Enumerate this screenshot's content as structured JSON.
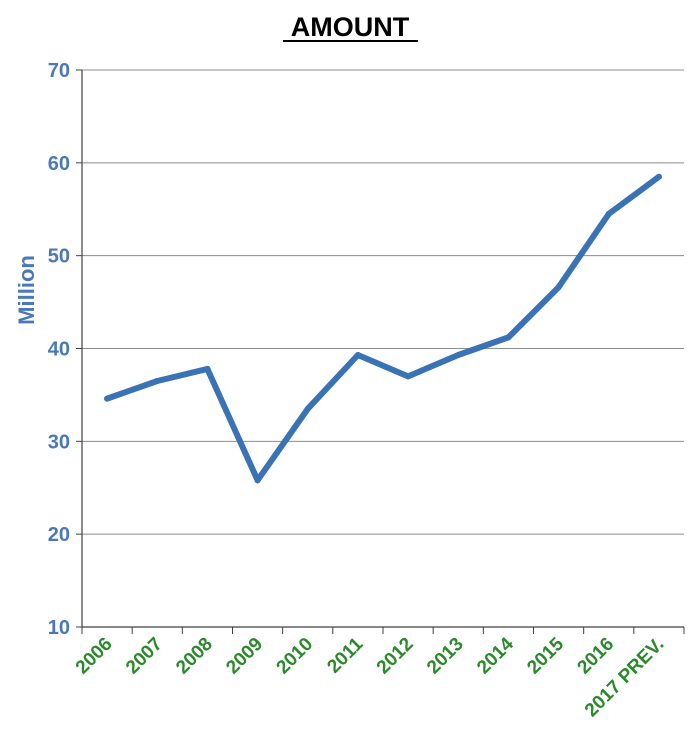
{
  "chart_data": {
    "type": "line",
    "title": "AMOUNT",
    "ylabel": "Million",
    "xlabel": "",
    "categories": [
      "2006",
      "2007",
      "2008",
      "2009",
      "2010",
      "2011",
      "2012",
      "2013",
      "2014",
      "2015",
      "2016",
      "2017 PREV."
    ],
    "series": [
      {
        "values": [
          34.6,
          36.5,
          37.8,
          25.8,
          33.5,
          39.3,
          37.0,
          39.3,
          41.2,
          46.6,
          54.5,
          58.5
        ]
      }
    ],
    "ylim": [
      10,
      70
    ],
    "yticks": [
      10,
      20,
      30,
      40,
      50,
      60,
      70
    ],
    "grid": true,
    "legend": "none",
    "colors": {
      "line": "#3a73b5",
      "ytick": "#4a78b8",
      "xtick": "#2a8a2a",
      "grid": "#8c8c8c",
      "axis": "#404040",
      "title": "#000000"
    }
  }
}
